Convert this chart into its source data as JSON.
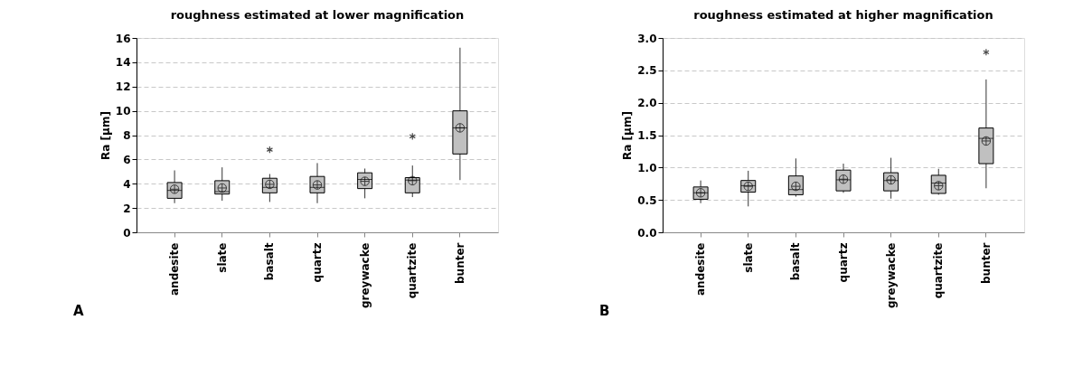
{
  "chart_data": [
    {
      "type": "box",
      "title": "roughness estimated at lower magnification",
      "ylabel": "Ra [µm]",
      "categories": [
        "andesite",
        "slate",
        "basalt",
        "quartz",
        "greywacke",
        "quartzite",
        "bunter"
      ],
      "ylim": [
        0,
        16
      ],
      "yticks": [
        0,
        2,
        4,
        6,
        8,
        10,
        12,
        14,
        16
      ],
      "grid": "y",
      "color": "#c0c0c0",
      "annotations": [
        "A"
      ],
      "boxes": [
        {
          "low": 2.4,
          "q1": 2.8,
          "median": 3.45,
          "q3": 4.1,
          "high": 5.1,
          "mean": 3.55
        },
        {
          "low": 2.6,
          "q1": 3.15,
          "median": 3.35,
          "q3": 4.25,
          "high": 5.35,
          "mean": 3.65
        },
        {
          "low": 2.5,
          "q1": 3.25,
          "median": 3.7,
          "q3": 4.45,
          "high": 4.8,
          "mean": 3.95,
          "outliers": [
            6.8
          ]
        },
        {
          "low": 2.4,
          "q1": 3.25,
          "median": 3.7,
          "q3": 4.6,
          "high": 5.7,
          "mean": 3.9
        },
        {
          "low": 2.8,
          "q1": 3.6,
          "median": 4.35,
          "q3": 4.9,
          "high": 5.25,
          "mean": 4.2
        },
        {
          "low": 2.9,
          "q1": 3.25,
          "median": 4.3,
          "q3": 4.5,
          "high": 5.5,
          "mean": 4.25,
          "outliers": [
            7.9
          ]
        },
        {
          "low": 4.3,
          "q1": 6.45,
          "median": 8.6,
          "q3": 10,
          "high": 15.2,
          "mean": 8.6
        }
      ]
    },
    {
      "type": "box",
      "title": "roughness estimated at higher magnification",
      "ylabel": "Ra [µm]",
      "categories": [
        "andesite",
        "slate",
        "basalt",
        "quartz",
        "greywacke",
        "quartzite",
        "bunter"
      ],
      "ylim": [
        0,
        3
      ],
      "yticks": [
        {
          "value": 0,
          "label": "0.0"
        },
        0.5,
        {
          "value": 1,
          "label": "1.0"
        },
        1.5,
        {
          "value": 2,
          "label": "2.0"
        },
        2.5,
        {
          "value": 3,
          "label": "3.0"
        }
      ],
      "grid": "y",
      "color": "#c0c0c0",
      "annotations": [
        "B"
      ],
      "boxes": [
        {
          "low": 0.45,
          "q1": 0.51,
          "median": 0.61,
          "q3": 0.7,
          "high": 0.8,
          "mean": 0.61
        },
        {
          "low": 0.4,
          "q1": 0.62,
          "median": 0.72,
          "q3": 0.8,
          "high": 0.95,
          "mean": 0.71
        },
        {
          "low": 0.55,
          "q1": 0.58,
          "median": 0.66,
          "q3": 0.87,
          "high": 1.14,
          "mean": 0.71
        },
        {
          "low": 0.61,
          "q1": 0.64,
          "median": 0.81,
          "q3": 0.96,
          "high": 1.06,
          "mean": 0.82
        },
        {
          "low": 0.52,
          "q1": 0.64,
          "median": 0.8,
          "q3": 0.92,
          "high": 1.15,
          "mean": 0.81
        },
        {
          "low": 0.58,
          "q1": 0.6,
          "median": 0.76,
          "q3": 0.88,
          "high": 0.98,
          "mean": 0.72
        },
        {
          "low": 0.68,
          "q1": 1.06,
          "median": 1.45,
          "q3": 1.61,
          "high": 2.36,
          "mean": 1.41,
          "outliers": [
            2.78
          ]
        }
      ]
    }
  ]
}
